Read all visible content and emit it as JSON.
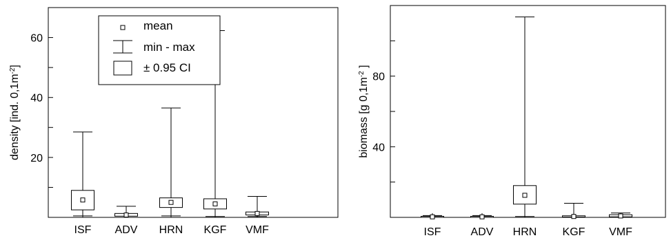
{
  "chart_data": [
    {
      "type": "box",
      "categories": [
        "ISF",
        "ADV",
        "HRN",
        "KGF",
        "VMF"
      ],
      "ylabel": {
        "prefix": "density [ind. 0,1m",
        "sup": "-2",
        "suffix": "]"
      },
      "ylim": [
        0,
        70
      ],
      "yticks": [
        0,
        10,
        20,
        30,
        40,
        50,
        60,
        70
      ],
      "ytick_labels": [
        "",
        "",
        "20",
        "",
        "40",
        "",
        "60",
        ""
      ],
      "series": [
        {
          "mean": 5.8,
          "ci_low": 2.5,
          "ci_high": 9.0,
          "min": 0.5,
          "max": 28.5
        },
        {
          "mean": 0.8,
          "ci_low": 0.4,
          "ci_high": 1.3,
          "min": 0.0,
          "max": 3.7
        },
        {
          "mean": 5.0,
          "ci_low": 3.3,
          "ci_high": 6.5,
          "min": 0.5,
          "max": 36.5
        },
        {
          "mean": 4.5,
          "ci_low": 2.8,
          "ci_high": 6.2,
          "min": 0.3,
          "max": 62.3
        },
        {
          "mean": 1.3,
          "ci_low": 0.8,
          "ci_high": 1.8,
          "min": 0.3,
          "max": 7.0
        }
      ],
      "legend": {
        "position": "top-center",
        "entries": [
          {
            "marker": "mean",
            "label": "mean"
          },
          {
            "marker": "minmax",
            "label": "min - max"
          },
          {
            "marker": "ci",
            "label": "± 0.95 CI"
          }
        ]
      }
    },
    {
      "type": "box",
      "categories": [
        "ISF",
        "ADV",
        "HRN",
        "KGF",
        "VMF"
      ],
      "ylabel": {
        "prefix": "biomass [g 0,1m",
        "sup": "-2",
        "suffix": " ]"
      },
      "ylim": [
        0,
        120
      ],
      "yticks": [
        0,
        20,
        40,
        60,
        80,
        100,
        120
      ],
      "ytick_labels": [
        "",
        "",
        "40",
        "",
        "80",
        "",
        ""
      ],
      "series": [
        {
          "mean": 0.3,
          "ci_low": 0.1,
          "ci_high": 0.6,
          "min": 0.0,
          "max": 1.0
        },
        {
          "mean": 0.3,
          "ci_low": 0.1,
          "ci_high": 0.6,
          "min": 0.0,
          "max": 1.0
        },
        {
          "mean": 12.5,
          "ci_low": 7.5,
          "ci_high": 18.0,
          "min": 0.5,
          "max": 113.5
        },
        {
          "mean": 0.5,
          "ci_low": 0.2,
          "ci_high": 0.9,
          "min": 0.0,
          "max": 8.0
        },
        {
          "mean": 0.8,
          "ci_low": 0.3,
          "ci_high": 1.5,
          "min": 0.0,
          "max": 2.5
        }
      ]
    }
  ]
}
